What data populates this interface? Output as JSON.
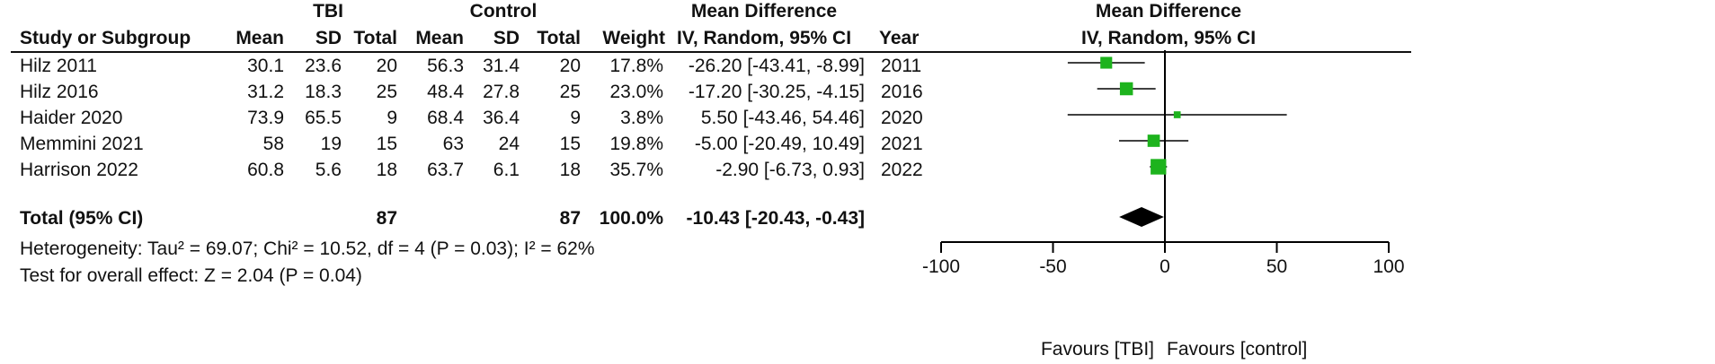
{
  "table": {
    "group_headers": {
      "experimental": "TBI",
      "control": "Control",
      "effect": "Mean Difference"
    },
    "columns": {
      "study": "Study or Subgroup",
      "exp_mean": "Mean",
      "exp_sd": "SD",
      "exp_total": "Total",
      "ctrl_mean": "Mean",
      "ctrl_sd": "SD",
      "ctrl_total": "Total",
      "weight": "Weight",
      "ci": "IV, Random, 95% CI",
      "year": "Year"
    },
    "rows": [
      {
        "study": "Hilz 2011",
        "exp_mean": "30.1",
        "exp_sd": "23.6",
        "exp_total": "20",
        "ctrl_mean": "56.3",
        "ctrl_sd": "31.4",
        "ctrl_total": "20",
        "weight": "17.8%",
        "ci": "-26.20 [-43.41, -8.99]",
        "year": "2011"
      },
      {
        "study": "Hilz 2016",
        "exp_mean": "31.2",
        "exp_sd": "18.3",
        "exp_total": "25",
        "ctrl_mean": "48.4",
        "ctrl_sd": "27.8",
        "ctrl_total": "25",
        "weight": "23.0%",
        "ci": "-17.20 [-30.25, -4.15]",
        "year": "2016"
      },
      {
        "study": "Haider 2020",
        "exp_mean": "73.9",
        "exp_sd": "65.5",
        "exp_total": "9",
        "ctrl_mean": "68.4",
        "ctrl_sd": "36.4",
        "ctrl_total": "9",
        "weight": "3.8%",
        "ci": "5.50 [-43.46, 54.46]",
        "year": "2020"
      },
      {
        "study": "Memmini 2021",
        "exp_mean": "58",
        "exp_sd": "19",
        "exp_total": "15",
        "ctrl_mean": "63",
        "ctrl_sd": "24",
        "ctrl_total": "15",
        "weight": "19.8%",
        "ci": "-5.00 [-20.49, 10.49]",
        "year": "2021"
      },
      {
        "study": "Harrison 2022",
        "exp_mean": "60.8",
        "exp_sd": "5.6",
        "exp_total": "18",
        "ctrl_mean": "63.7",
        "ctrl_sd": "6.1",
        "ctrl_total": "18",
        "weight": "35.7%",
        "ci": "-2.90 [-6.73, 0.93]",
        "year": "2022"
      }
    ],
    "total": {
      "label": "Total (95% CI)",
      "exp_total": "87",
      "ctrl_total": "87",
      "weight": "100.0%",
      "ci": "-10.43 [-20.43, -0.43]"
    },
    "heterogeneity": "Heterogeneity: Tau² = 69.07; Chi² = 10.52, df = 4 (P = 0.03); I² = 62%",
    "overall_effect": "Test for overall effect: Z = 2.04 (P = 0.04)"
  },
  "plot": {
    "title_line1": "Mean Difference",
    "title_line2": "IV, Random, 95% CI",
    "favours_left": "Favours [TBI]",
    "favours_right": "Favours [control]"
  },
  "chart_data": {
    "type": "scatter",
    "subtype": "forest",
    "xlim": [
      -100,
      100
    ],
    "x_ticks": [
      -100,
      -50,
      0,
      50,
      100
    ],
    "tick_labels": [
      "-100",
      "-50",
      "0",
      "50",
      "100"
    ],
    "studies": [
      {
        "name": "Hilz 2011",
        "estimate": -26.2,
        "ci_low": -43.41,
        "ci_high": -8.99,
        "weight": 17.8
      },
      {
        "name": "Hilz 2016",
        "estimate": -17.2,
        "ci_low": -30.25,
        "ci_high": -4.15,
        "weight": 23.0
      },
      {
        "name": "Haider 2020",
        "estimate": 5.5,
        "ci_low": -43.46,
        "ci_high": 54.46,
        "weight": 3.8
      },
      {
        "name": "Memmini 2021",
        "estimate": -5.0,
        "ci_low": -20.49,
        "ci_high": 10.49,
        "weight": 19.8
      },
      {
        "name": "Harrison 2022",
        "estimate": -2.9,
        "ci_low": -6.73,
        "ci_high": 0.93,
        "weight": 35.7
      }
    ],
    "pooled": {
      "estimate": -10.43,
      "ci_low": -20.43,
      "ci_high": -0.43
    },
    "colors": {
      "marker": "#1db31d",
      "pooled": "#000000",
      "lines": "#000000"
    }
  }
}
